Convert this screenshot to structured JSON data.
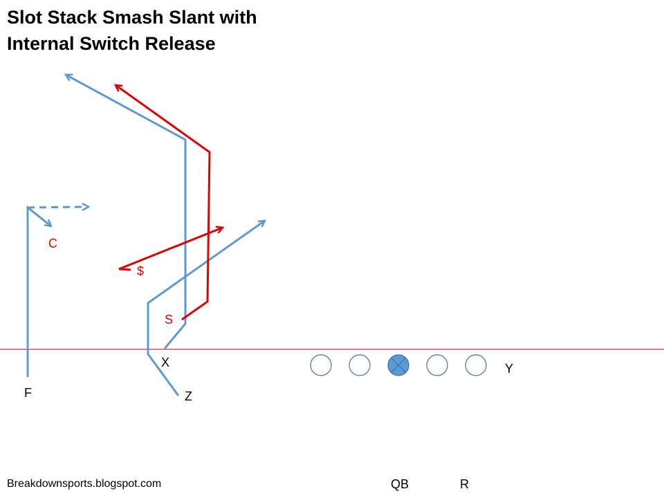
{
  "title": {
    "line1": "Slot Stack Smash Slant with",
    "line2": "Internal Switch Release"
  },
  "players": {
    "F": "F",
    "X": "X",
    "Z": "Z",
    "Y": "Y",
    "QB": "QB",
    "R": "R"
  },
  "defenders": {
    "C": "C",
    "dollar": "$",
    "S": "S"
  },
  "footer": "Breakdownsports.blogspot.com",
  "colors": {
    "offense_route": "#5b9bd5",
    "defense_route": "#e00000",
    "line_of_scrimmage": "#c00000",
    "lineman_outline": "#41719c",
    "center_fill": "#5b9bd5",
    "defense_label": "#e00000",
    "text": "#000000"
  }
}
